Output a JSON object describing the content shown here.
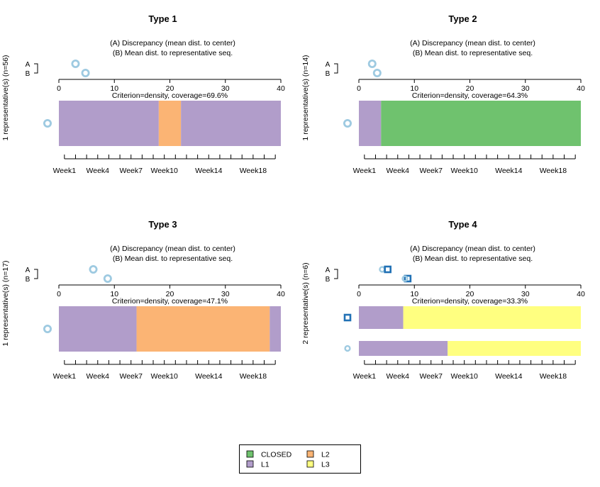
{
  "chart_data": {
    "type": "sequence-representative-plot",
    "states": [
      {
        "code": "CLOSED",
        "label": "CLOSED",
        "color": "#6fc26e"
      },
      {
        "code": "L1",
        "label": "L1",
        "color": "#b19dca"
      },
      {
        "code": "L2",
        "label": "L2",
        "color": "#fbb474"
      },
      {
        "code": "L3",
        "label": "L3",
        "color": "#ffff80"
      }
    ],
    "legend": {
      "placement": "bottom-center",
      "columns": [
        [
          "CLOSED",
          "L1"
        ],
        [
          "L2",
          "L3"
        ]
      ]
    },
    "time_axis": {
      "n_positions": 20,
      "tick_labels": [
        {
          "pos": 1,
          "label": "Week1"
        },
        {
          "pos": 4,
          "label": "Week4"
        },
        {
          "pos": 7,
          "label": "Week7"
        },
        {
          "pos": 10,
          "label": "Week10"
        },
        {
          "pos": 14,
          "label": "Week14"
        },
        {
          "pos": 18,
          "label": "Week18"
        }
      ]
    },
    "distance_axis": {
      "min": 0,
      "max": 40,
      "ticks": [
        0,
        10,
        20,
        30,
        40
      ]
    },
    "discrepancy_text": {
      "line_a": "(A) Discrepancy (mean dist. to center)",
      "line_b": "(B) Mean dist. to representative seq.",
      "row_label_a": "A",
      "row_label_b": "B"
    },
    "panels": [
      {
        "title": "Type 1",
        "ylabel": "1 representative(s) (n=56)",
        "criterion": "Criterion=density, coverage=69.6%",
        "discrepancy_A": 3.0,
        "representatives": [
          {
            "marker": "circle-large",
            "mean_dist": 4.8,
            "segments": [
              {
                "state": "L1",
                "start": 0,
                "end": 9
              },
              {
                "state": "L2",
                "start": 9,
                "end": 11
              },
              {
                "state": "L1",
                "start": 11,
                "end": 20
              }
            ]
          }
        ]
      },
      {
        "title": "Type 2",
        "ylabel": "1 representative(s) (n=14)",
        "criterion": "Criterion=density, coverage=64.3%",
        "discrepancy_A": 2.4,
        "representatives": [
          {
            "marker": "circle-large",
            "mean_dist": 3.3,
            "segments": [
              {
                "state": "L1",
                "start": 0,
                "end": 2
              },
              {
                "state": "CLOSED",
                "start": 2,
                "end": 20
              }
            ]
          }
        ]
      },
      {
        "title": "Type 3",
        "ylabel": "1 representative(s) (n=17)",
        "criterion": "Criterion=density, coverage=47.1%",
        "discrepancy_A": 6.2,
        "representatives": [
          {
            "marker": "circle-large",
            "mean_dist": 8.8,
            "segments": [
              {
                "state": "L1",
                "start": 0,
                "end": 7
              },
              {
                "state": "L2",
                "start": 7,
                "end": 19
              },
              {
                "state": "L1",
                "start": 19,
                "end": 20
              }
            ]
          }
        ]
      },
      {
        "title": "Type 4",
        "ylabel": "2 representative(s) (n=6)",
        "criterion": "Criterion=density, coverage=33.3%",
        "discrepancy_A": 4.2,
        "representatives": [
          {
            "marker": "square",
            "a_value": 5.2,
            "mean_dist": 8.8,
            "segments": [
              {
                "state": "L1",
                "start": 0,
                "end": 4
              },
              {
                "state": "L3",
                "start": 4,
                "end": 20
              }
            ]
          },
          {
            "marker": "circle-small",
            "mean_dist": 8.3,
            "segments": [
              {
                "state": "L1",
                "start": 0,
                "end": 8
              },
              {
                "state": "L3",
                "start": 8,
                "end": 20
              }
            ]
          }
        ]
      }
    ]
  }
}
